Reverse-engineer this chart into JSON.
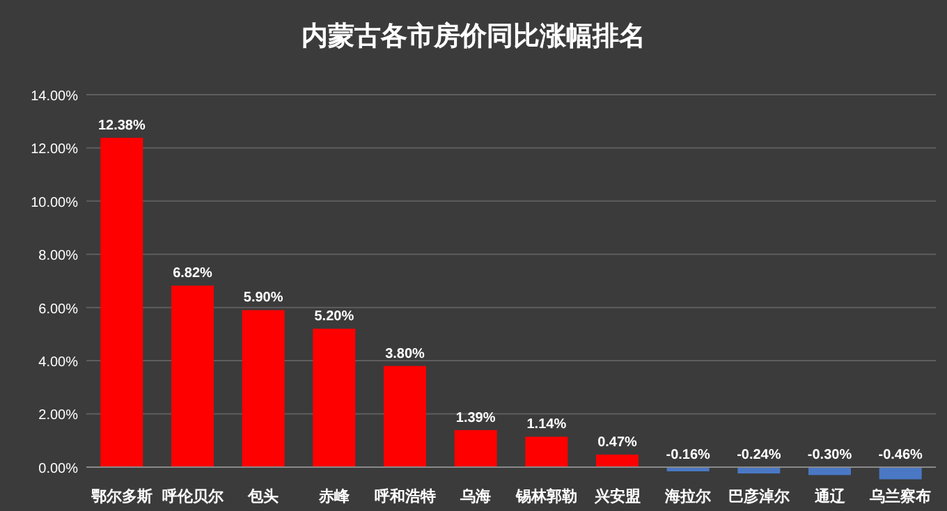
{
  "chart_data": {
    "type": "bar",
    "title": "内蒙古各市房价同比涨幅排名",
    "categories": [
      "鄂尔多斯",
      "呼伦贝尔",
      "包头",
      "赤峰",
      "呼和浩特",
      "乌海",
      "锡林郭勒",
      "兴安盟",
      "海拉尔",
      "巴彦淖尔",
      "通辽",
      "乌兰察布"
    ],
    "values": [
      12.38,
      6.82,
      5.9,
      5.2,
      3.8,
      1.39,
      1.14,
      0.47,
      -0.16,
      -0.24,
      -0.3,
      -0.46
    ],
    "colors": [
      "#ff0000",
      "#ff0000",
      "#ff0000",
      "#ff0000",
      "#ff0000",
      "#ff0000",
      "#ff0000",
      "#ff0000",
      "#4a78c4",
      "#4a78c4",
      "#4a78c4",
      "#4a78c4"
    ],
    "value_labels": [
      "12.38%",
      "6.82%",
      "5.90%",
      "5.20%",
      "3.80%",
      "1.39%",
      "1.14%",
      "0.47%",
      "-0.16%",
      "-0.24%",
      "-0.30%",
      "-0.46%"
    ],
    "ylim": [
      -0.5,
      14
    ],
    "yticks": [
      {
        "value": 0,
        "label": "0.00%"
      },
      {
        "value": 2,
        "label": "2.00%"
      },
      {
        "value": 4,
        "label": "4.00%"
      },
      {
        "value": 6,
        "label": "6.00%"
      },
      {
        "value": 8,
        "label": "8.00%"
      },
      {
        "value": 10,
        "label": "10.00%"
      },
      {
        "value": 12,
        "label": "12.00%"
      },
      {
        "value": 14,
        "label": "14.00%"
      }
    ],
    "grid": "y"
  }
}
